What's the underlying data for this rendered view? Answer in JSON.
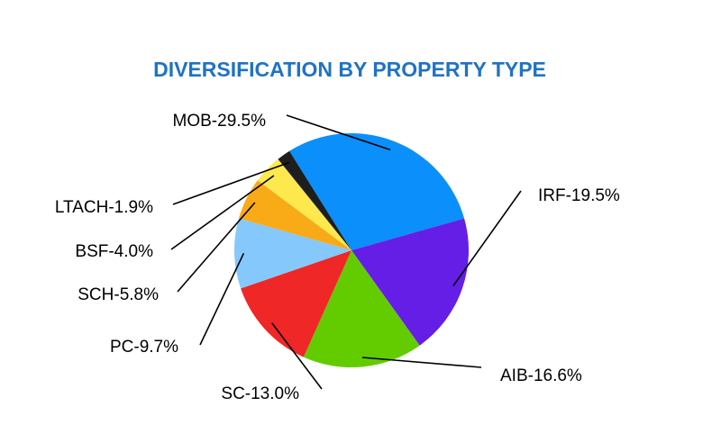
{
  "chart_data": {
    "type": "pie",
    "title": "DIVERSIFICATION BY PROPERTY TYPE",
    "slices": [
      {
        "label": "MOB-29.5%",
        "category": "MOB",
        "value": 29.5,
        "color": "#0a8ffb"
      },
      {
        "label": "IRF-19.5%",
        "category": "IRF",
        "value": 19.5,
        "color": "#651ee6"
      },
      {
        "label": "AIB-16.6%",
        "category": "AIB",
        "value": 16.6,
        "color": "#63cc00"
      },
      {
        "label": "SC-13.0%",
        "category": "SC",
        "value": 13.0,
        "color": "#ef2727"
      },
      {
        "label": "PC-9.7%",
        "category": "PC",
        "value": 9.7,
        "color": "#85c8fc"
      },
      {
        "label": "SCH-5.8%",
        "category": "SCH",
        "value": 5.8,
        "color": "#f8aa17"
      },
      {
        "label": "BSF-4.0%",
        "category": "BSF",
        "value": 4.0,
        "color": "#fde94d"
      },
      {
        "label": "LTACH-1.9%",
        "category": "LTACH",
        "value": 1.9,
        "color": "#1e1e1e"
      }
    ],
    "legend": "none"
  }
}
